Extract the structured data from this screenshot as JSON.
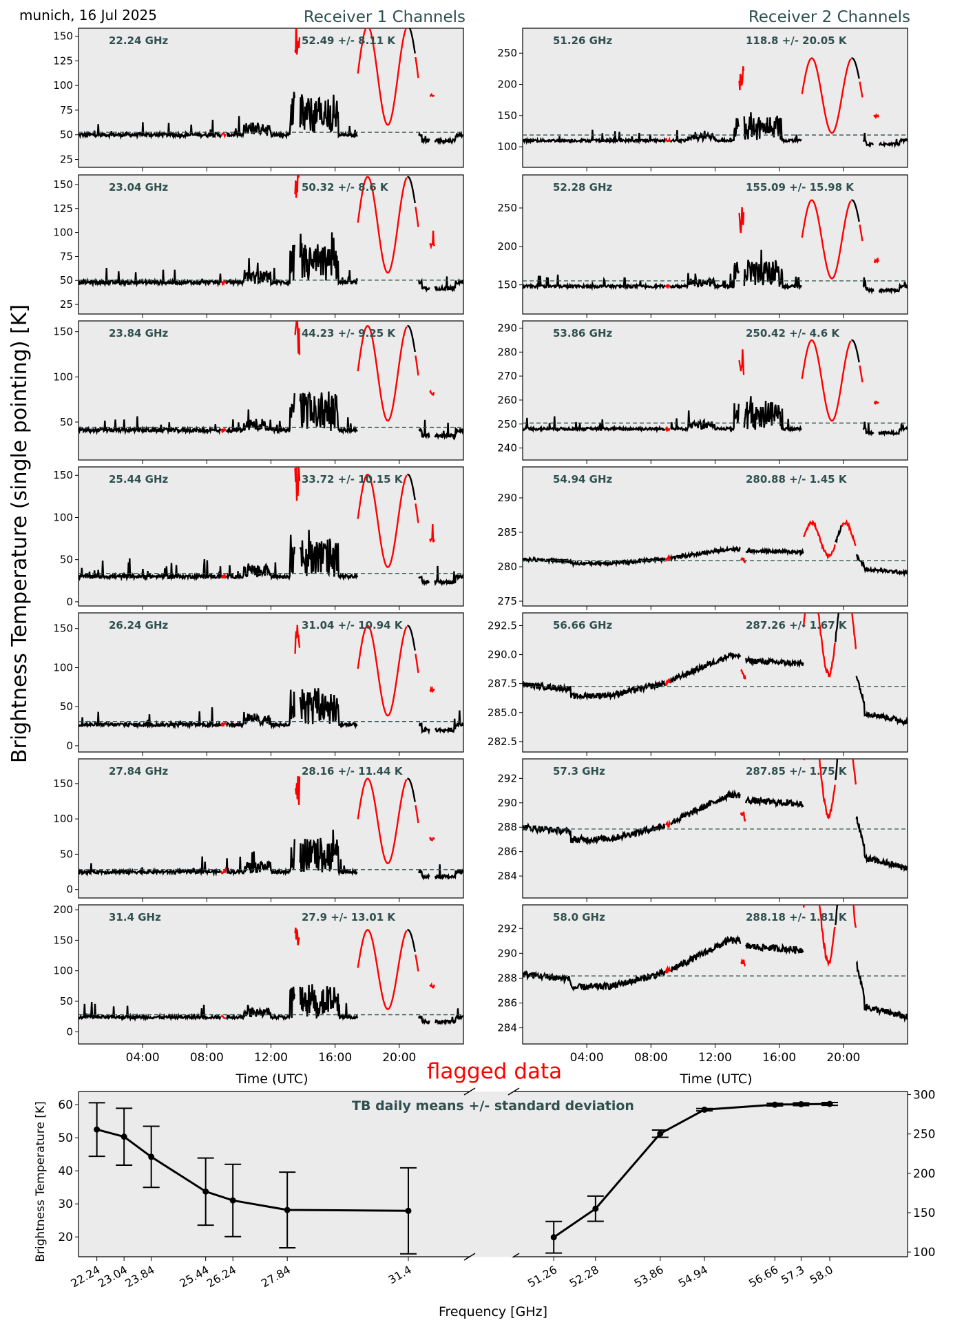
{
  "header": {
    "location_date": "munich, 16 Jul 2025",
    "receiver1_title": "Receiver 1 Channels",
    "receiver2_title": "Receiver 2 Channels"
  },
  "colors": {
    "panel_bg": "#ebebeb",
    "data": "#000000",
    "flagged": "#ff0000",
    "annotation": "#2f4f4f",
    "mean_line": "#2f4f4f"
  },
  "chart_data": [
    {
      "type": "line",
      "title": "Receiver 1 Channels",
      "ylabel": "Brightness Temperature (single pointing) [K]",
      "xlabel": "Time (UTC)",
      "xticks": [
        "04:00",
        "08:00",
        "12:00",
        "16:00",
        "20:00"
      ],
      "xlim_hours": [
        0,
        24
      ],
      "legend_note": "flagged data",
      "panels": [
        {
          "freq_label": "22.24 GHz",
          "stat_label": "52.49 +/- 8.11 K",
          "mean": 52.49,
          "std": 8.11,
          "ylim": [
            17,
            158
          ],
          "yticks": [
            25,
            50,
            75,
            100,
            125,
            150
          ],
          "base": 50,
          "spike": 1.0
        },
        {
          "freq_label": "23.04 GHz",
          "stat_label": "50.32 +/- 8.6 K",
          "mean": 50.32,
          "std": 8.6,
          "ylim": [
            15,
            160
          ],
          "yticks": [
            25,
            50,
            75,
            100,
            125,
            150
          ],
          "base": 48,
          "spike": 1.0
        },
        {
          "freq_label": "23.84 GHz",
          "stat_label": "44.23 +/- 9.25 K",
          "mean": 44.23,
          "std": 9.25,
          "ylim": [
            8,
            162
          ],
          "yticks": [
            50,
            100,
            150
          ],
          "base": 41,
          "spike": 1.05
        },
        {
          "freq_label": "25.44 GHz",
          "stat_label": "33.72 +/- 10.15 K",
          "mean": 33.72,
          "std": 10.15,
          "ylim": [
            -5,
            160
          ],
          "yticks": [
            0,
            50,
            100,
            150
          ],
          "base": 30,
          "spike": 1.1
        },
        {
          "freq_label": "26.24 GHz",
          "stat_label": "31.04 +/- 10.94 K",
          "mean": 31.04,
          "std": 10.94,
          "ylim": [
            -8,
            170
          ],
          "yticks": [
            0,
            50,
            100,
            150
          ],
          "base": 27,
          "spike": 1.15
        },
        {
          "freq_label": "27.84 GHz",
          "stat_label": "28.16 +/- 11.44 K",
          "mean": 28.16,
          "std": 11.44,
          "ylim": [
            -12,
            185
          ],
          "yticks": [
            0,
            50,
            100,
            150
          ],
          "base": 25,
          "spike": 1.2
        },
        {
          "freq_label": "31.4 GHz",
          "stat_label": "27.9 +/- 13.01 K",
          "mean": 27.9,
          "std": 13.01,
          "ylim": [
            -20,
            208
          ],
          "yticks": [
            0,
            50,
            100,
            150,
            200
          ],
          "base": 24,
          "spike": 1.3
        }
      ]
    },
    {
      "type": "line",
      "title": "Receiver 2 Channels",
      "xlabel": "Time (UTC)",
      "xticks": [
        "04:00",
        "08:00",
        "12:00",
        "16:00",
        "20:00"
      ],
      "xlim_hours": [
        0,
        24
      ],
      "panels": [
        {
          "freq_label": "51.26 GHz",
          "stat_label": "118.8 +/- 20.05 K",
          "mean": 118.8,
          "std": 20.05,
          "ylim": [
            67,
            290
          ],
          "yticks": [
            100,
            150,
            200,
            250
          ],
          "base": 110,
          "amp": 1.0,
          "kind": "wet"
        },
        {
          "freq_label": "52.28 GHz",
          "stat_label": "155.09 +/- 15.98 K",
          "mean": 155.09,
          "std": 15.98,
          "ylim": [
            112,
            293
          ],
          "yticks": [
            150,
            200,
            250
          ],
          "base": 148,
          "amp": 0.85,
          "kind": "wet"
        },
        {
          "freq_label": "53.86 GHz",
          "stat_label": "250.42 +/- 4.6 K",
          "mean": 250.42,
          "std": 4.6,
          "ylim": [
            235,
            293
          ],
          "yticks": [
            240,
            250,
            260,
            270,
            280,
            290
          ],
          "base": 248,
          "amp": 0.28,
          "kind": "wet"
        },
        {
          "freq_label": "54.94 GHz",
          "stat_label": "280.88 +/- 1.45 K",
          "mean": 280.88,
          "std": 1.45,
          "ylim": [
            274.3,
            294.5
          ],
          "yticks": [
            275,
            280,
            285,
            290
          ],
          "base": 281,
          "kind": "smooth",
          "scale": 1.0
        },
        {
          "freq_label": "56.66 GHz",
          "stat_label": "287.26 +/- 1.67 K",
          "mean": 287.26,
          "std": 1.67,
          "ylim": [
            281.6,
            293.6
          ],
          "yticks": [
            282.5,
            285.0,
            287.5,
            290.0,
            292.5
          ],
          "base": 287.3,
          "kind": "smooth",
          "scale": 1.0
        },
        {
          "freq_label": "57.3 GHz",
          "stat_label": "287.85 +/- 1.75 K",
          "mean": 287.85,
          "std": 1.75,
          "ylim": [
            282.2,
            293.6
          ],
          "yticks": [
            284,
            286,
            288,
            290,
            292
          ],
          "base": 287.9,
          "kind": "smooth",
          "scale": 1.05
        },
        {
          "freq_label": "58.0 GHz",
          "stat_label": "288.18 +/- 1.81 K",
          "mean": 288.18,
          "std": 1.81,
          "ylim": [
            282.7,
            293.9
          ],
          "yticks": [
            284,
            286,
            288,
            290,
            292
          ],
          "base": 288.2,
          "kind": "smooth",
          "scale": 1.08
        }
      ]
    },
    {
      "type": "line",
      "title": "TB daily means +/- standard deviation",
      "xlabel": "Frequency [GHz]",
      "ylabel": "Brightness Temperature [K]",
      "left_series": {
        "name": "Receiver 1",
        "x": [
          22.24,
          23.04,
          23.84,
          25.44,
          26.24,
          27.84,
          31.4
        ],
        "x_tick_labels": [
          "22.24",
          "23.04",
          "23.84",
          "25.44",
          "26.24",
          "27.84",
          "31.4"
        ],
        "y": [
          52.49,
          50.32,
          44.23,
          33.72,
          31.04,
          28.16,
          27.9
        ],
        "err": [
          8.11,
          8.6,
          9.25,
          10.15,
          10.94,
          11.44,
          13.01
        ],
        "ylim": [
          14,
          64
        ],
        "yticks": [
          20,
          30,
          40,
          50,
          60
        ],
        "xlim": [
          21.7,
          33.0
        ]
      },
      "right_series": {
        "name": "Receiver 2",
        "x": [
          51.26,
          52.28,
          53.86,
          54.94,
          56.66,
          57.3,
          58.0
        ],
        "x_tick_labels": [
          "51.26",
          "52.28",
          "53.86",
          "54.94",
          "56.66",
          "57.3",
          "58.0"
        ],
        "y": [
          118.8,
          155.09,
          250.42,
          280.88,
          287.26,
          287.85,
          288.18
        ],
        "err": [
          20.05,
          15.98,
          4.6,
          1.45,
          1.67,
          1.75,
          1.81
        ],
        "ylim": [
          94,
          304
        ],
        "yticks": [
          100,
          150,
          200,
          250,
          300
        ],
        "xlim": [
          50.5,
          59.9
        ]
      }
    }
  ]
}
